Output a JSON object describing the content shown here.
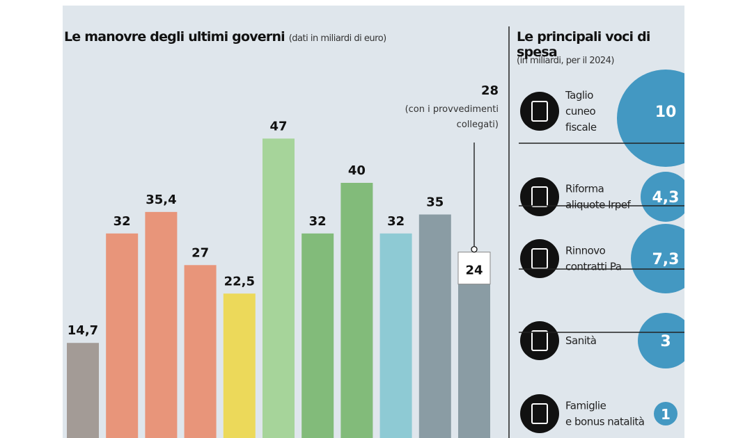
{
  "chart_data": [
    {
      "type": "bar",
      "title": "Le manovre degli ultimi governi",
      "subtitle": "(dati in miliardi di euro)",
      "values": [
        14.7,
        32,
        35.4,
        27,
        22.5,
        47,
        32,
        40,
        32,
        35,
        24
      ],
      "value_labels": [
        "14,7",
        "32",
        "35,4",
        "27",
        "22,5",
        "47",
        "32",
        "40",
        "32",
        "35",
        "24"
      ],
      "colors": [
        "#a39b96",
        "#e8957a",
        "#e8957a",
        "#e8957a",
        "#ecd95a",
        "#a6d49a",
        "#82bb7a",
        "#82bb7a",
        "#8ecad4",
        "#8a9ca4",
        "#8a9ca4"
      ],
      "annotation": {
        "value_label": "28",
        "text_lines": [
          "(con i provvedimenti",
          "collegati)"
        ],
        "bar_index": 10
      },
      "grid": false
    },
    {
      "type": "bubble",
      "title": "Le principali voci di spesa",
      "subtitle": "(in miliardi, per il 2024)",
      "items": [
        {
          "label_lines": [
            "Taglio",
            "cuneo",
            "fiscale"
          ],
          "value": 10,
          "value_label": "10",
          "icon": "tax-document-icon"
        },
        {
          "label_lines": [
            "Riforma",
            "aliquote Irpef"
          ],
          "value": 4.3,
          "value_label": "4,3",
          "icon": "money-stack-icon"
        },
        {
          "label_lines": [
            "Rinnovo",
            "contratti Pa"
          ],
          "value": 7.3,
          "value_label": "7,3",
          "icon": "contract-pen-icon"
        },
        {
          "label_lines": [
            "Sanità"
          ],
          "value": 3,
          "value_label": "3",
          "icon": "stethoscope-icon"
        },
        {
          "label_lines": [
            "Famiglie",
            "e bonus natalità"
          ],
          "value": 1,
          "value_label": "1",
          "icon": "stroller-icon"
        }
      ],
      "bubble_color": "#3a93c0"
    }
  ]
}
